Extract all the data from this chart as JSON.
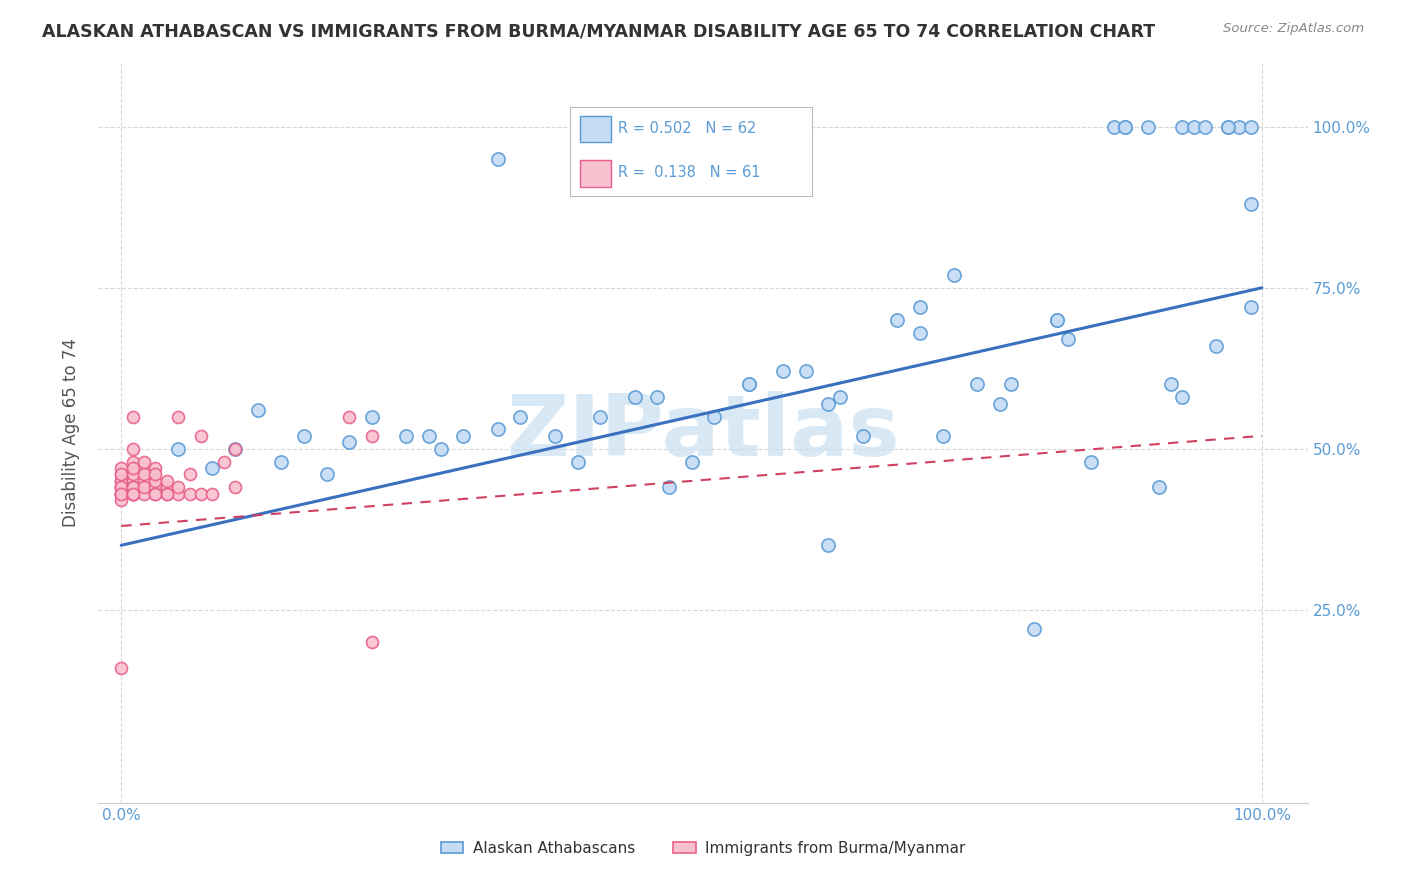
{
  "title": "ALASKAN ATHABASCAN VS IMMIGRANTS FROM BURMA/MYANMAR DISABILITY AGE 65 TO 74 CORRELATION CHART",
  "source": "Source: ZipAtlas.com",
  "ylabel": "Disability Age 65 to 74",
  "legend_blue_R": "R = 0.502",
  "legend_blue_N": "N = 62",
  "legend_pink_R": "R =  0.138",
  "legend_pink_N": "N = 61",
  "legend1_label": "Alaskan Athabascans",
  "legend2_label": "Immigrants from Burma/Myanmar",
  "blue_fill": "#C5DCF5",
  "blue_edge": "#5B9BD5",
  "pink_fill": "#F9C0D0",
  "pink_edge": "#E8608A",
  "blue_line_color": "#3A70C0",
  "pink_line_color": "#D04060",
  "grid_color": "#D8D8D8",
  "tick_label_color": "#5B9BD5",
  "watermark_color": "#C8DFF0",
  "blue_x": [
    0.05,
    0.08,
    0.1,
    0.12,
    0.14,
    0.16,
    0.18,
    0.2,
    0.22,
    0.25,
    0.27,
    0.28,
    0.3,
    0.33,
    0.35,
    0.38,
    0.4,
    0.42,
    0.45,
    0.47,
    0.5,
    0.52,
    0.55,
    0.58,
    0.6,
    0.62,
    0.63,
    0.65,
    0.68,
    0.7,
    0.72,
    0.73,
    0.75,
    0.77,
    0.78,
    0.8,
    0.82,
    0.83,
    0.85,
    0.87,
    0.88,
    0.9,
    0.91,
    0.92,
    0.93,
    0.94,
    0.95,
    0.96,
    0.97,
    0.98,
    0.99,
    0.99,
    0.33,
    0.48,
    0.55,
    0.62,
    0.7,
    0.82,
    0.88,
    0.93,
    0.97,
    0.99
  ],
  "blue_y": [
    0.5,
    0.47,
    0.5,
    0.56,
    0.48,
    0.52,
    0.46,
    0.51,
    0.55,
    0.52,
    0.52,
    0.5,
    0.52,
    0.53,
    0.55,
    0.52,
    0.48,
    0.55,
    0.58,
    0.58,
    0.48,
    0.55,
    0.6,
    0.62,
    0.62,
    0.57,
    0.58,
    0.52,
    0.7,
    0.68,
    0.52,
    0.77,
    0.6,
    0.57,
    0.6,
    0.22,
    0.7,
    0.67,
    0.48,
    1.0,
    1.0,
    1.0,
    0.44,
    0.6,
    1.0,
    1.0,
    1.0,
    0.66,
    1.0,
    1.0,
    0.72,
    1.0,
    0.95,
    0.44,
    0.6,
    0.35,
    0.72,
    0.7,
    1.0,
    0.58,
    1.0,
    0.88
  ],
  "pink_x": [
    0.0,
    0.0,
    0.0,
    0.0,
    0.0,
    0.0,
    0.0,
    0.0,
    0.0,
    0.0,
    0.0,
    0.0,
    0.0,
    0.0,
    0.01,
    0.01,
    0.01,
    0.01,
    0.01,
    0.01,
    0.01,
    0.01,
    0.01,
    0.01,
    0.01,
    0.02,
    0.02,
    0.02,
    0.02,
    0.02,
    0.02,
    0.03,
    0.03,
    0.03,
    0.03,
    0.03,
    0.04,
    0.04,
    0.04,
    0.05,
    0.05,
    0.05,
    0.06,
    0.06,
    0.07,
    0.07,
    0.08,
    0.09,
    0.1,
    0.1,
    0.2,
    0.22,
    0.22,
    0.04,
    0.01,
    0.02,
    0.03,
    0.0,
    0.01,
    0.0,
    0.01
  ],
  "pink_y": [
    0.44,
    0.45,
    0.46,
    0.43,
    0.47,
    0.44,
    0.43,
    0.44,
    0.45,
    0.43,
    0.43,
    0.44,
    0.42,
    0.43,
    0.44,
    0.43,
    0.45,
    0.46,
    0.43,
    0.44,
    0.48,
    0.43,
    0.5,
    0.43,
    0.44,
    0.44,
    0.45,
    0.43,
    0.47,
    0.44,
    0.46,
    0.44,
    0.45,
    0.43,
    0.47,
    0.46,
    0.44,
    0.45,
    0.43,
    0.43,
    0.44,
    0.55,
    0.43,
    0.46,
    0.43,
    0.52,
    0.43,
    0.48,
    0.5,
    0.44,
    0.55,
    0.52,
    0.2,
    0.43,
    0.55,
    0.48,
    0.43,
    0.46,
    0.47,
    0.16,
    0.43
  ],
  "blue_trend_x": [
    0.0,
    1.0
  ],
  "blue_trend_y": [
    0.35,
    0.75
  ],
  "pink_trend_x": [
    0.0,
    1.0
  ],
  "pink_trend_y": [
    0.38,
    0.52
  ],
  "xlim": [
    -0.02,
    1.04
  ],
  "ylim": [
    -0.05,
    1.1
  ],
  "xticks": [
    0.0,
    1.0
  ],
  "xtick_labels": [
    "0.0%",
    "100.0%"
  ],
  "yticks": [
    0.25,
    0.5,
    0.75,
    1.0
  ],
  "ytick_labels": [
    "25.0%",
    "50.0%",
    "75.0%",
    "100.0%"
  ]
}
